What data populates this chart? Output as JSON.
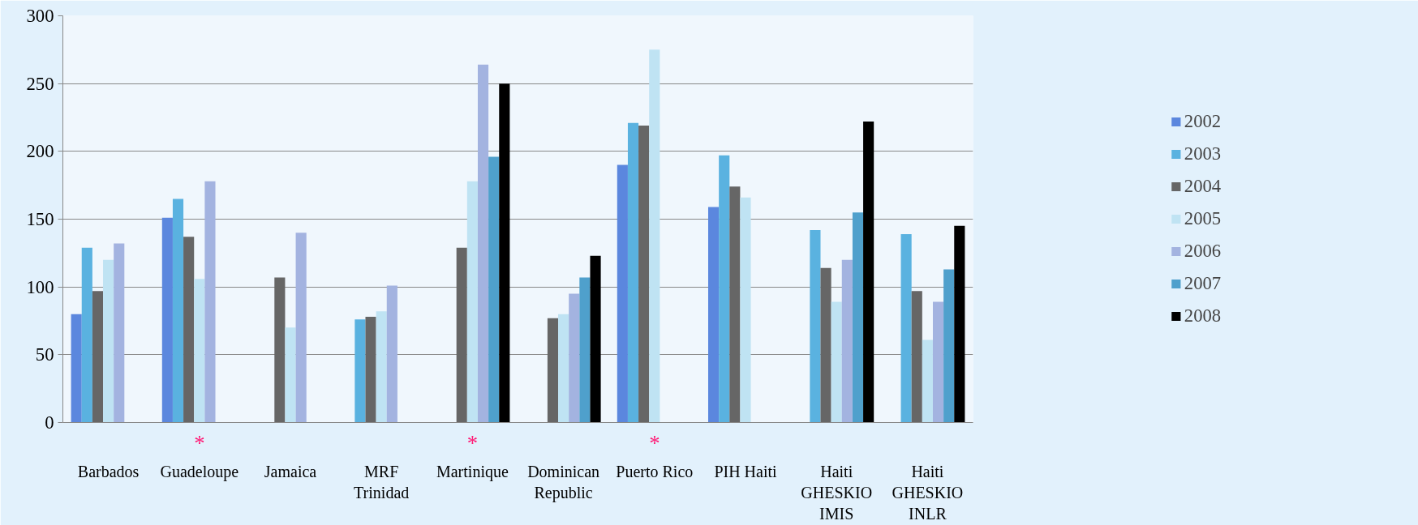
{
  "chart_data": {
    "type": "bar",
    "categories": [
      "Barbados",
      "Guadeloupe",
      "Jamaica",
      "MRF\nTrinidad",
      "Martinique",
      "Dominican\nRepublic",
      "Puerto Rico",
      "PIH Haiti",
      "Haiti\nGHESKIO\nIMIS",
      "Haiti\nGHESKIO\nINLR"
    ],
    "series": [
      {
        "name": "2002",
        "color": "#5b87de",
        "values": [
          80,
          151,
          null,
          null,
          null,
          null,
          190,
          159,
          null,
          null
        ]
      },
      {
        "name": "2003",
        "color": "#5ab2e0",
        "values": [
          129,
          165,
          null,
          76,
          null,
          null,
          221,
          197,
          142,
          139
        ]
      },
      {
        "name": "2004",
        "color": "#666666",
        "values": [
          97,
          137,
          107,
          78,
          129,
          77,
          219,
          174,
          114,
          97
        ]
      },
      {
        "name": "2005",
        "color": "#bfe3f3",
        "values": [
          120,
          106,
          70,
          82,
          178,
          80,
          275,
          166,
          89,
          61
        ]
      },
      {
        "name": "2006",
        "color": "#a3b3e0",
        "values": [
          132,
          178,
          140,
          101,
          264,
          95,
          null,
          null,
          120,
          89
        ]
      },
      {
        "name": "2007",
        "color": "#4fa0cc",
        "values": [
          null,
          null,
          null,
          null,
          196,
          107,
          null,
          null,
          155,
          113
        ]
      },
      {
        "name": "2008",
        "color": "#000000",
        "values": [
          null,
          null,
          null,
          null,
          250,
          123,
          null,
          null,
          222,
          145
        ]
      }
    ],
    "ylim": [
      0,
      300
    ],
    "yticks": [
      0,
      50,
      100,
      150,
      200,
      250,
      300
    ],
    "grid": "y",
    "legend": "right",
    "annotations": [
      "*",
      "*",
      "*"
    ]
  }
}
